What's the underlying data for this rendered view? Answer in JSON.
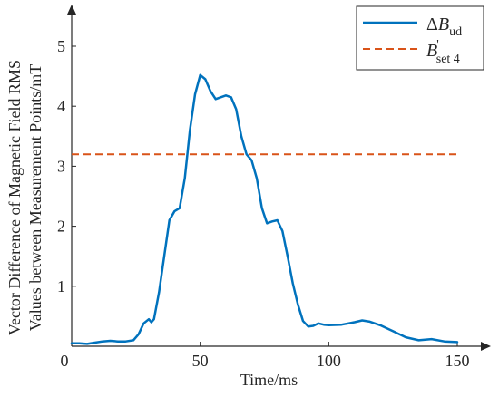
{
  "chart_data": {
    "type": "line",
    "xlabel": "Time/ms",
    "ylabel_lines": [
      "Vector Difference of Magnetic Field RMS",
      "Values between Measurement Points/mT"
    ],
    "xlim": [
      0,
      150
    ],
    "ylim": [
      0,
      5.5
    ],
    "x_ticks": [
      0,
      50,
      100,
      150
    ],
    "y_ticks": [
      1,
      2,
      3,
      4,
      5
    ],
    "x_tick_labels": [
      "0",
      "50",
      "100",
      "150"
    ],
    "y_tick_labels": [
      "1",
      "2",
      "3",
      "4",
      "5"
    ],
    "grid": false,
    "legend_position": "top-right",
    "series": [
      {
        "legend": {
          "main": "ΔB",
          "sub": "ud",
          "sup": ""
        },
        "style": "solid",
        "color": "#0072BD",
        "x": [
          0,
          3,
          6,
          9,
          12,
          15,
          18,
          21,
          24,
          26,
          28,
          30,
          31,
          32,
          34,
          36,
          38,
          40,
          42,
          44,
          46,
          48,
          50,
          52,
          54,
          56,
          58,
          60,
          62,
          64,
          66,
          68,
          70,
          72,
          74,
          76,
          78,
          80,
          82,
          84,
          86,
          88,
          90,
          92,
          94,
          96,
          98,
          100,
          105,
          110,
          113,
          116,
          120,
          125,
          130,
          135,
          140,
          145,
          150
        ],
        "y": [
          0.05,
          0.05,
          0.04,
          0.06,
          0.08,
          0.09,
          0.08,
          0.08,
          0.1,
          0.2,
          0.38,
          0.45,
          0.4,
          0.45,
          0.9,
          1.5,
          2.1,
          2.25,
          2.3,
          2.8,
          3.6,
          4.2,
          4.52,
          4.45,
          4.25,
          4.12,
          4.15,
          4.18,
          4.15,
          3.95,
          3.5,
          3.2,
          3.1,
          2.8,
          2.3,
          2.05,
          2.08,
          2.1,
          1.92,
          1.5,
          1.05,
          0.7,
          0.42,
          0.33,
          0.34,
          0.38,
          0.36,
          0.35,
          0.36,
          0.4,
          0.43,
          0.41,
          0.35,
          0.25,
          0.15,
          0.1,
          0.12,
          0.08,
          0.07
        ]
      },
      {
        "legend": {
          "main": "B",
          "sub": "set 4",
          "sup": "'"
        },
        "style": "dashed",
        "color": "#D95319",
        "x": [
          0,
          150
        ],
        "y": [
          3.2,
          3.2
        ]
      }
    ]
  }
}
